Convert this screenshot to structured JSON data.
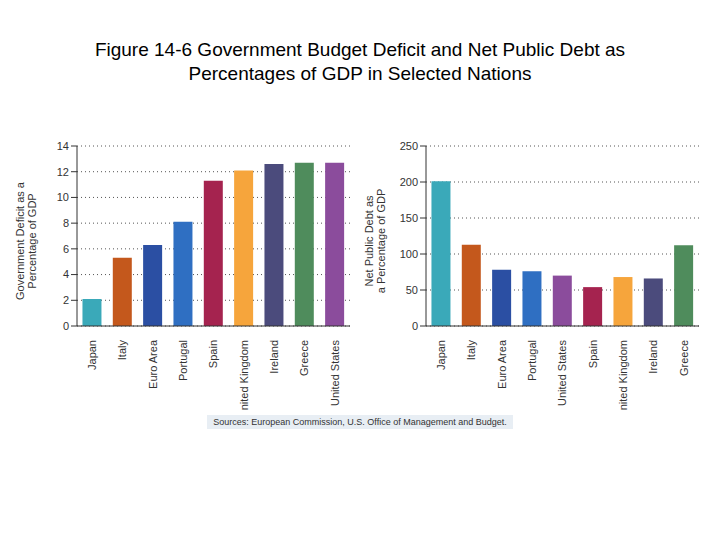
{
  "title": "Figure 14-6  Government Budget Deficit and Net Public Debt as Percentages of GDP in Selected Nations",
  "source": "Sources: European Commission, U.S. Office of Management and Budget.",
  "chart_data": [
    {
      "type": "bar",
      "ylabel": "Government Deficit as a Percentage of GDP",
      "categories": [
        "Japan",
        "Italy",
        "Euro Area",
        "Portugal",
        "Spain",
        "United Kingdom",
        "Ireland",
        "Greece",
        "United States"
      ],
      "values": [
        2.1,
        5.3,
        6.3,
        8.1,
        11.3,
        12.1,
        12.6,
        12.7,
        12.7
      ],
      "colors": [
        "#3aa9b9",
        "#c4581c",
        "#2b4fa3",
        "#2f6fc2",
        "#a5234f",
        "#f6a53c",
        "#4b4b7c",
        "#4f8c5c",
        "#8b4c9c"
      ],
      "ylim": [
        0,
        14
      ],
      "yticks": [
        0,
        2,
        4,
        6,
        8,
        10,
        12,
        14
      ],
      "grid": true
    },
    {
      "type": "bar",
      "ylabel": "Net Public Debt as a Percentage of GDP",
      "categories": [
        "Japan",
        "Italy",
        "Euro Area",
        "Portugal",
        "United States",
        "Spain",
        "United Kingdom",
        "Ireland",
        "Greece"
      ],
      "values": [
        201,
        113,
        78,
        76,
        70,
        54,
        68,
        66,
        112
      ],
      "colors": [
        "#3aa9b9",
        "#c4581c",
        "#2b4fa3",
        "#2f6fc2",
        "#8b4c9c",
        "#a5234f",
        "#f6a53c",
        "#4b4b7c",
        "#4f8c5c"
      ],
      "ylim": [
        0,
        250
      ],
      "yticks": [
        0,
        50,
        100,
        150,
        200,
        250
      ],
      "grid": true
    }
  ]
}
